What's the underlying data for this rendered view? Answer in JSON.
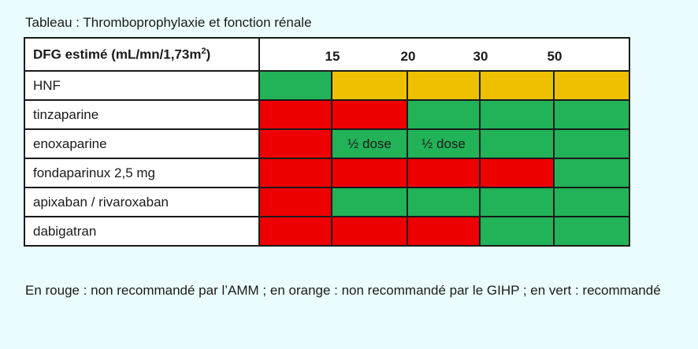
{
  "title": "Tableau : Thromboprophylaxie et fonction rénale",
  "header": {
    "label": "DFG estimé (mL/mn/1,73m",
    "label_sup": "2",
    "label_close": ")",
    "ticks": [
      "15",
      "20",
      "30",
      "50"
    ]
  },
  "colors": {
    "red": "#ee0000",
    "green": "#22b258",
    "orange": "#edc100"
  },
  "rows": [
    {
      "name": "HNF",
      "cells": [
        {
          "color": "green",
          "text": ""
        },
        {
          "color": "orange",
          "text": ""
        },
        {
          "color": "orange",
          "text": ""
        },
        {
          "color": "orange",
          "text": ""
        },
        {
          "color": "orange",
          "text": ""
        }
      ]
    },
    {
      "name": "tinzaparine",
      "cells": [
        {
          "color": "red",
          "text": ""
        },
        {
          "color": "red",
          "text": ""
        },
        {
          "color": "green",
          "text": ""
        },
        {
          "color": "green",
          "text": ""
        },
        {
          "color": "green",
          "text": ""
        }
      ]
    },
    {
      "name": "enoxaparine",
      "cells": [
        {
          "color": "red",
          "text": ""
        },
        {
          "color": "green",
          "text": "½ dose"
        },
        {
          "color": "green",
          "text": "½ dose"
        },
        {
          "color": "green",
          "text": ""
        },
        {
          "color": "green",
          "text": ""
        }
      ]
    },
    {
      "name": "fondaparinux 2,5 mg",
      "cells": [
        {
          "color": "red",
          "text": ""
        },
        {
          "color": "red",
          "text": ""
        },
        {
          "color": "red",
          "text": ""
        },
        {
          "color": "red",
          "text": ""
        },
        {
          "color": "green",
          "text": ""
        }
      ]
    },
    {
      "name": "apixaban / rivaroxaban",
      "cells": [
        {
          "color": "red",
          "text": ""
        },
        {
          "color": "green",
          "text": ""
        },
        {
          "color": "green",
          "text": ""
        },
        {
          "color": "green",
          "text": ""
        },
        {
          "color": "green",
          "text": ""
        }
      ]
    },
    {
      "name": "dabigatran",
      "cells": [
        {
          "color": "red",
          "text": ""
        },
        {
          "color": "red",
          "text": ""
        },
        {
          "color": "red",
          "text": ""
        },
        {
          "color": "green",
          "text": ""
        },
        {
          "color": "green",
          "text": ""
        }
      ]
    }
  ],
  "note": "En rouge : non recommandé par l’AMM ; en orange : non recommandé par le GIHP ; en vert : recommandé"
}
